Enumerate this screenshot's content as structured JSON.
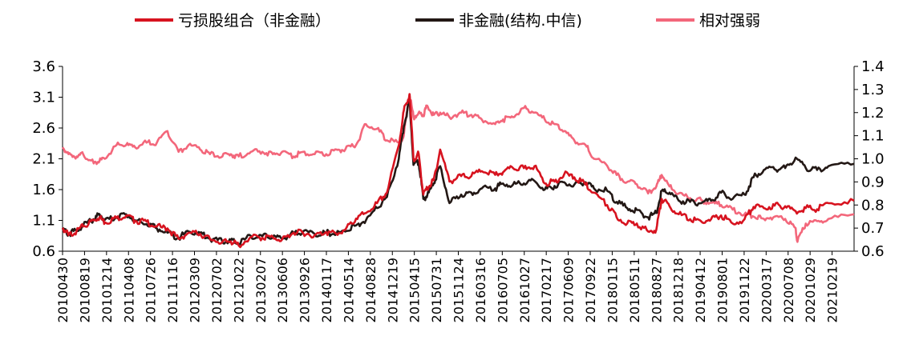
{
  "chart_data": {
    "type": "line",
    "legend_position": "top",
    "grid": false,
    "y_left": {
      "ylim": [
        0.6,
        3.6
      ],
      "ticks": [
        "0.6",
        "1.1",
        "1.6",
        "2.1",
        "2.6",
        "3.1",
        "3.6"
      ]
    },
    "y_right": {
      "ylim": [
        0.6,
        1.4
      ],
      "ticks": [
        "0.6",
        "0.7",
        "0.8",
        "0.9",
        "1.0",
        "1.1",
        "1.2",
        "1.3",
        "1.4"
      ]
    },
    "x_range": [
      "20100430",
      "20211231"
    ],
    "x_tick_labels": [
      "20100430",
      "20100819",
      "20101214",
      "20110408",
      "20110726",
      "20111116",
      "20120309",
      "20120702",
      "20121022",
      "20130207",
      "20130606",
      "20130926",
      "20140117",
      "20140514",
      "20140828",
      "20141219",
      "20150415",
      "20150731",
      "20151124",
      "20160316",
      "20160705",
      "20161027",
      "20170217",
      "20170609",
      "20170922",
      "20180115",
      "20180511",
      "20180827",
      "20181218",
      "20190412",
      "20190801",
      "20191122",
      "20200317",
      "20200708",
      "20201029",
      "20210219"
    ],
    "series": [
      {
        "name": "亏损股组合（非金融）",
        "color": "#d7131f",
        "axis": "left",
        "points": [
          [
            "20100430",
            0.98
          ],
          [
            "20100601",
            0.86
          ],
          [
            "20100715",
            0.93
          ],
          [
            "20100819",
            1.0
          ],
          [
            "20101015",
            1.1
          ],
          [
            "20101115",
            1.15
          ],
          [
            "20101214",
            1.07
          ],
          [
            "20110215",
            1.14
          ],
          [
            "20110408",
            1.18
          ],
          [
            "20110526",
            1.09
          ],
          [
            "20110726",
            1.08
          ],
          [
            "20110920",
            1.0
          ],
          [
            "20111116",
            0.97
          ],
          [
            "20120115",
            0.8
          ],
          [
            "20120309",
            0.9
          ],
          [
            "20120510",
            0.88
          ],
          [
            "20120702",
            0.8
          ],
          [
            "20120907",
            0.75
          ],
          [
            "20121022",
            0.76
          ],
          [
            "20121204",
            0.69
          ],
          [
            "20130207",
            0.83
          ],
          [
            "20130410",
            0.82
          ],
          [
            "20130606",
            0.83
          ],
          [
            "20130725",
            0.79
          ],
          [
            "20130926",
            0.9
          ],
          [
            "20131115",
            0.9
          ],
          [
            "20140117",
            0.86
          ],
          [
            "20140320",
            0.91
          ],
          [
            "20140514",
            0.88
          ],
          [
            "20140701",
            0.95
          ],
          [
            "20140828",
            1.13
          ],
          [
            "20141020",
            1.22
          ],
          [
            "20141219",
            1.38
          ],
          [
            "20150210",
            1.55
          ],
          [
            "20150415",
            2.32
          ],
          [
            "20150512",
            2.88
          ],
          [
            "20150612",
            3.15
          ],
          [
            "20150703",
            2.1
          ],
          [
            "20150731",
            2.18
          ],
          [
            "20150825",
            1.52
          ],
          [
            "20150915",
            1.62
          ],
          [
            "20151020",
            1.75
          ],
          [
            "20151124",
            2.25
          ],
          [
            "20160113",
            1.73
          ],
          [
            "20160316",
            1.82
          ],
          [
            "20160510",
            1.82
          ],
          [
            "20160705",
            1.9
          ],
          [
            "20160915",
            1.84
          ],
          [
            "20161027",
            1.88
          ],
          [
            "20161220",
            1.95
          ],
          [
            "20170217",
            1.95
          ],
          [
            "20170415",
            1.98
          ],
          [
            "20170609",
            1.7
          ],
          [
            "20170801",
            1.73
          ],
          [
            "20170922",
            1.85
          ],
          [
            "20171115",
            1.8
          ],
          [
            "20180115",
            1.68
          ],
          [
            "20180301",
            1.55
          ],
          [
            "20180511",
            1.35
          ],
          [
            "20180701",
            1.15
          ],
          [
            "20180827",
            1.05
          ],
          [
            "20181018",
            1.05
          ],
          [
            "20181218",
            0.92
          ],
          [
            "20190131",
            0.95
          ],
          [
            "20190301",
            1.45
          ],
          [
            "20190412",
            1.33
          ],
          [
            "20190601",
            1.2
          ],
          [
            "20190801",
            1.12
          ],
          [
            "20191001",
            1.08
          ],
          [
            "20191122",
            1.12
          ],
          [
            "20200115",
            1.18
          ],
          [
            "20200317",
            1.05
          ],
          [
            "20200520",
            1.12
          ],
          [
            "20200708",
            1.32
          ],
          [
            "20200901",
            1.3
          ],
          [
            "20201029",
            1.34
          ],
          [
            "20201225",
            1.33
          ],
          [
            "20210219",
            1.25
          ],
          [
            "20210415",
            1.3
          ],
          [
            "20210615",
            1.28
          ],
          [
            "20210815",
            1.38
          ],
          [
            "20211231",
            1.42
          ]
        ]
      },
      {
        "name": "非金融(结构.中信)",
        "color": "#231815",
        "axis": "left",
        "points": [
          [
            "20100430",
            0.95
          ],
          [
            "20100601",
            0.88
          ],
          [
            "20100715",
            0.94
          ],
          [
            "20100819",
            1.02
          ],
          [
            "20101015",
            1.12
          ],
          [
            "20101115",
            1.2
          ],
          [
            "20101214",
            1.11
          ],
          [
            "20110215",
            1.15
          ],
          [
            "20110408",
            1.2
          ],
          [
            "20110526",
            1.1
          ],
          [
            "20110726",
            1.04
          ],
          [
            "20110920",
            0.97
          ],
          [
            "20111116",
            0.9
          ],
          [
            "20120115",
            0.82
          ],
          [
            "20120309",
            0.92
          ],
          [
            "20120510",
            0.9
          ],
          [
            "20120702",
            0.8
          ],
          [
            "20120907",
            0.76
          ],
          [
            "20121022",
            0.77
          ],
          [
            "20121204",
            0.72
          ],
          [
            "20130207",
            0.85
          ],
          [
            "20130410",
            0.84
          ],
          [
            "20130606",
            0.83
          ],
          [
            "20130725",
            0.8
          ],
          [
            "20130926",
            0.9
          ],
          [
            "20131115",
            0.92
          ],
          [
            "20140117",
            0.88
          ],
          [
            "20140320",
            0.9
          ],
          [
            "20140514",
            0.88
          ],
          [
            "20140701",
            0.92
          ],
          [
            "20140828",
            1.02
          ],
          [
            "20141020",
            1.1
          ],
          [
            "20141219",
            1.3
          ],
          [
            "20150210",
            1.48
          ],
          [
            "20150415",
            2.1
          ],
          [
            "20150512",
            2.62
          ],
          [
            "20150612",
            3.05
          ],
          [
            "20150703",
            2.0
          ],
          [
            "20150731",
            2.05
          ],
          [
            "20150825",
            1.45
          ],
          [
            "20150915",
            1.5
          ],
          [
            "20151020",
            1.7
          ],
          [
            "20151124",
            1.98
          ],
          [
            "20160113",
            1.38
          ],
          [
            "20160316",
            1.52
          ],
          [
            "20160510",
            1.55
          ],
          [
            "20160705",
            1.62
          ],
          [
            "20160915",
            1.62
          ],
          [
            "20161027",
            1.7
          ],
          [
            "20161220",
            1.68
          ],
          [
            "20170217",
            1.7
          ],
          [
            "20170415",
            1.74
          ],
          [
            "20170609",
            1.6
          ],
          [
            "20170801",
            1.66
          ],
          [
            "20170922",
            1.72
          ],
          [
            "20171115",
            1.68
          ],
          [
            "20180115",
            1.72
          ],
          [
            "20180301",
            1.62
          ],
          [
            "20180511",
            1.58
          ],
          [
            "20180701",
            1.4
          ],
          [
            "20180827",
            1.3
          ],
          [
            "20181018",
            1.27
          ],
          [
            "20181218",
            1.15
          ],
          [
            "20190131",
            1.22
          ],
          [
            "20190301",
            1.58
          ],
          [
            "20190412",
            1.55
          ],
          [
            "20190601",
            1.42
          ],
          [
            "20190801",
            1.4
          ],
          [
            "20191001",
            1.38
          ],
          [
            "20191122",
            1.42
          ],
          [
            "20200115",
            1.55
          ],
          [
            "20200317",
            1.45
          ],
          [
            "20200520",
            1.52
          ],
          [
            "20200708",
            1.8
          ],
          [
            "20200901",
            1.92
          ],
          [
            "20201029",
            1.93
          ],
          [
            "20201225",
            1.95
          ],
          [
            "20210219",
            2.12
          ],
          [
            "20210415",
            1.95
          ],
          [
            "20210615",
            1.92
          ],
          [
            "20210815",
            1.98
          ],
          [
            "20211231",
            2.02
          ]
        ]
      },
      {
        "name": "相对强弱",
        "color": "#f3677b",
        "axis": "right",
        "points": [
          [
            "20100430",
            1.05
          ],
          [
            "20100601",
            1.02
          ],
          [
            "20100715",
            1.01
          ],
          [
            "20100819",
            1.02
          ],
          [
            "20101015",
            0.98
          ],
          [
            "20101115",
            0.99
          ],
          [
            "20101214",
            1.0
          ],
          [
            "20110215",
            1.06
          ],
          [
            "20110408",
            1.06
          ],
          [
            "20110526",
            1.05
          ],
          [
            "20110726",
            1.07
          ],
          [
            "20110920",
            1.07
          ],
          [
            "20111116",
            1.12
          ],
          [
            "20120115",
            1.03
          ],
          [
            "20120309",
            1.06
          ],
          [
            "20120510",
            1.04
          ],
          [
            "20120702",
            1.02
          ],
          [
            "20120907",
            1.01
          ],
          [
            "20121022",
            1.02
          ],
          [
            "20121204",
            1.01
          ],
          [
            "20130207",
            1.03
          ],
          [
            "20130410",
            1.03
          ],
          [
            "20130606",
            1.02
          ],
          [
            "20130725",
            1.03
          ],
          [
            "20130926",
            1.01
          ],
          [
            "20131115",
            1.03
          ],
          [
            "20140117",
            1.02
          ],
          [
            "20140320",
            1.02
          ],
          [
            "20140514",
            1.04
          ],
          [
            "20140701",
            1.04
          ],
          [
            "20140828",
            1.06
          ],
          [
            "20141020",
            1.15
          ],
          [
            "20141219",
            1.13
          ],
          [
            "20150210",
            1.08
          ],
          [
            "20150415",
            1.07
          ],
          [
            "20150512",
            1.1
          ],
          [
            "20150612",
            1.28
          ],
          [
            "20150703",
            1.18
          ],
          [
            "20150731",
            1.2
          ],
          [
            "20150825",
            1.19
          ],
          [
            "20150915",
            1.23
          ],
          [
            "20151020",
            1.19
          ],
          [
            "20151124",
            1.2
          ],
          [
            "20160113",
            1.18
          ],
          [
            "20160316",
            1.2
          ],
          [
            "20160510",
            1.19
          ],
          [
            "20160705",
            1.17
          ],
          [
            "20160915",
            1.15
          ],
          [
            "20161027",
            1.17
          ],
          [
            "20161220",
            1.18
          ],
          [
            "20170217",
            1.22
          ],
          [
            "20170415",
            1.2
          ],
          [
            "20170609",
            1.17
          ],
          [
            "20170801",
            1.15
          ],
          [
            "20170922",
            1.12
          ],
          [
            "20171115",
            1.08
          ],
          [
            "20180115",
            1.06
          ],
          [
            "20180301",
            1.0
          ],
          [
            "20180511",
            0.97
          ],
          [
            "20180701",
            0.93
          ],
          [
            "20180827",
            0.9
          ],
          [
            "20181018",
            0.89
          ],
          [
            "20181218",
            0.85
          ],
          [
            "20190131",
            0.88
          ],
          [
            "20190301",
            0.93
          ],
          [
            "20190412",
            0.88
          ],
          [
            "20190601",
            0.85
          ],
          [
            "20190801",
            0.83
          ],
          [
            "20191001",
            0.82
          ],
          [
            "20191122",
            0.81
          ],
          [
            "20200115",
            0.8
          ],
          [
            "20200317",
            0.78
          ],
          [
            "20200520",
            0.76
          ],
          [
            "20200708",
            0.75
          ],
          [
            "20200901",
            0.74
          ],
          [
            "20201029",
            0.75
          ],
          [
            "20201225",
            0.74
          ],
          [
            "20210219",
            0.7
          ],
          [
            "20210301",
            0.64
          ],
          [
            "20210415",
            0.72
          ],
          [
            "20210615",
            0.73
          ],
          [
            "20210815",
            0.74
          ],
          [
            "20211231",
            0.76
          ]
        ]
      }
    ]
  }
}
